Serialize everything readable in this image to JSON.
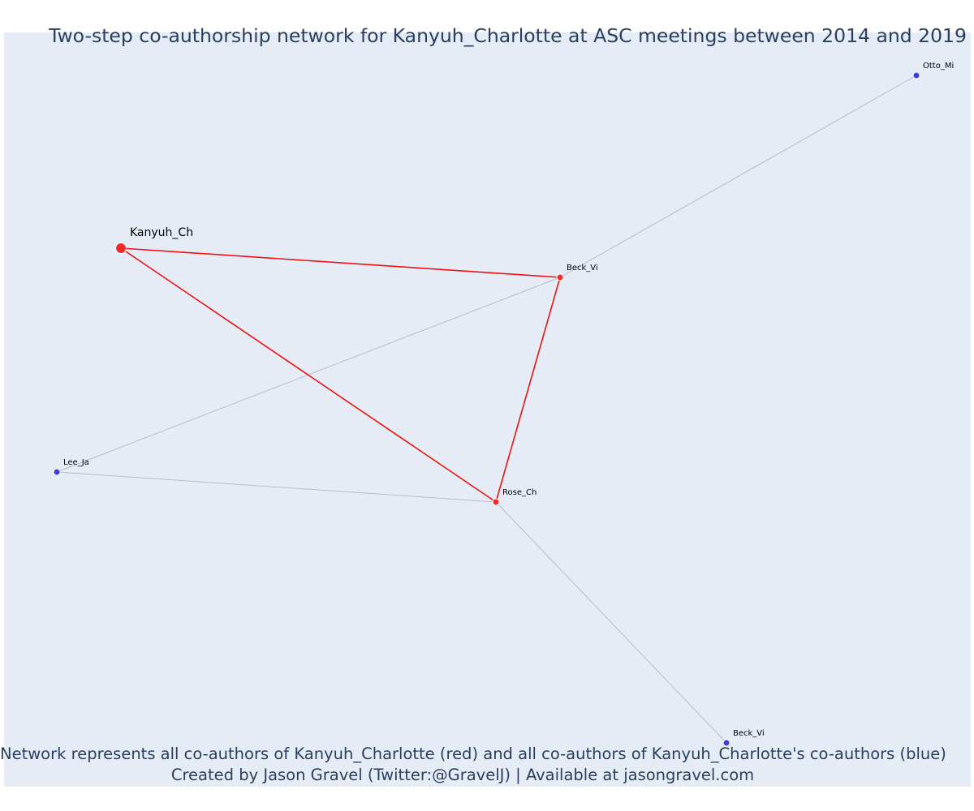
{
  "title": "Two-step co-authorship network for Kanyuh_Charlotte at ASC meetings between 2014 and 2019",
  "caption": {
    "line1": "Network represents all co-authors of Kanyuh_Charlotte (red) and all co-authors of Kanyuh_Charlotte's co-authors (blue)",
    "line2": "Created by Jason Gravel (Twitter:@GravelJ) | Available at jasongravel.com"
  },
  "colors": {
    "background": "#e5ecf6",
    "title_text": "#2a3f5f",
    "focal_node": "#ef2b2b",
    "coauthor_node": "#ef2b2b",
    "second_step_node": "#3d3de8",
    "direct_edge": "#ee1111",
    "indirect_edge": "#b9bccb"
  },
  "nodes": [
    {
      "id": "kanyuh_ch",
      "label": "Kanyuh_Ch",
      "group": "focal"
    },
    {
      "id": "beck_vi_1",
      "label": "Beck_Vi",
      "group": "coauthor"
    },
    {
      "id": "rose_ch",
      "label": "Rose_Ch",
      "group": "coauthor"
    },
    {
      "id": "otto_mi",
      "label": "Otto_Mi",
      "group": "second_step"
    },
    {
      "id": "lee_ja",
      "label": "Lee_Ja",
      "group": "second_step"
    },
    {
      "id": "beck_vi_2",
      "label": "Beck_Vi",
      "group": "second_step"
    }
  ],
  "edges": [
    {
      "source": "kanyuh_ch",
      "target": "beck_vi_1",
      "type": "direct"
    },
    {
      "source": "kanyuh_ch",
      "target": "rose_ch",
      "type": "direct"
    },
    {
      "source": "beck_vi_1",
      "target": "rose_ch",
      "type": "direct"
    },
    {
      "source": "beck_vi_1",
      "target": "otto_mi",
      "type": "indirect"
    },
    {
      "source": "beck_vi_1",
      "target": "lee_ja",
      "type": "indirect"
    },
    {
      "source": "lee_ja",
      "target": "rose_ch",
      "type": "indirect"
    },
    {
      "source": "rose_ch",
      "target": "beck_vi_2",
      "type": "indirect"
    }
  ]
}
